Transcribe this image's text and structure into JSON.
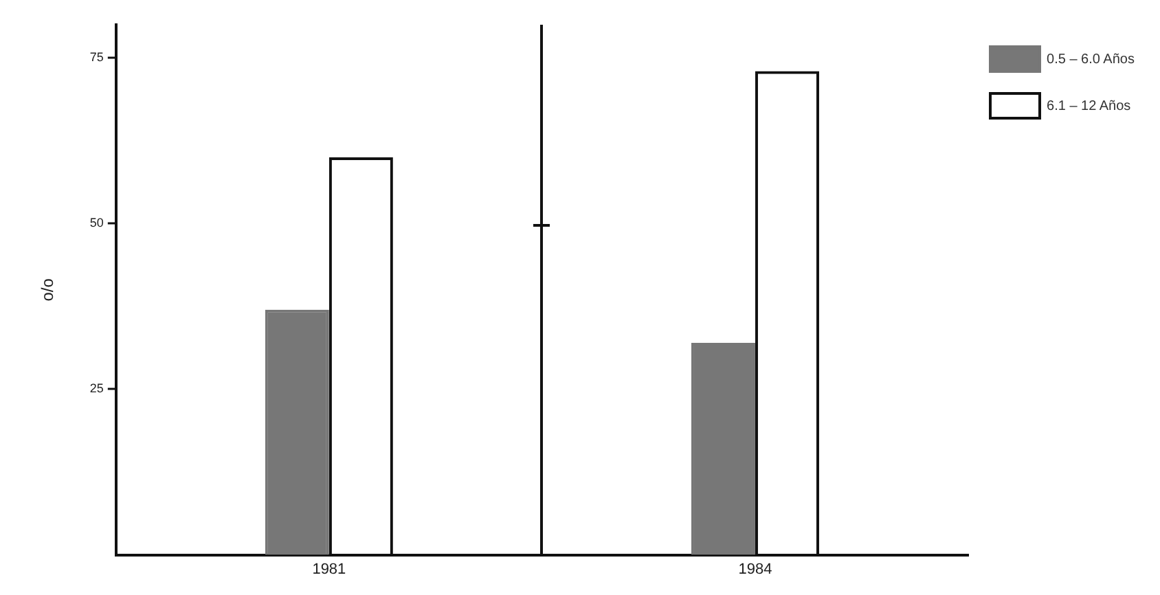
{
  "chart_data": {
    "type": "bar",
    "ylabel": "o/o",
    "categories": [
      "1981",
      "1984"
    ],
    "series": [
      {
        "name": "0.5 – 6.0 Años",
        "color": "#777777",
        "values": [
          37,
          32
        ]
      },
      {
        "name": "6.1 – 12 Años",
        "color": "#111111",
        "values": [
          60,
          73
        ]
      }
    ],
    "ylim": [
      0,
      80
    ],
    "yticks": [
      25,
      50,
      75
    ],
    "grid": false,
    "legend": "top right"
  }
}
